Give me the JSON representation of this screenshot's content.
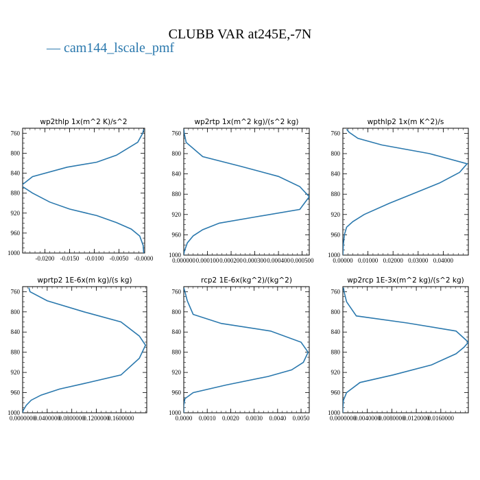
{
  "figure": {
    "title": "CLUBB VAR at245E,-7N",
    "legend": [
      {
        "label": "cam144_lscale_pmf",
        "color": "#2a78ad"
      }
    ]
  },
  "chart_data": [
    {
      "type": "line",
      "title": "wp2thlp  1x(m^2 K)/s^2",
      "xlim": [
        -0.0245,
        0.0002
      ],
      "ylim": [
        1000,
        750
      ],
      "xticks": [
        -0.02,
        -0.015,
        -0.01,
        -0.005,
        0
      ],
      "xtick_labels": [
        "-0.0200",
        "-0.0150",
        "-0.0100",
        "-0.0050",
        "-0.0000"
      ],
      "yticks": [
        760,
        800,
        840,
        880,
        920,
        960,
        1000
      ],
      "series": [
        {
          "x": [
            0,
            -0.0002,
            -0.0012,
            -0.0055,
            -0.0095,
            -0.0155,
            -0.0225,
            -0.0248,
            -0.0225,
            -0.019,
            -0.015,
            -0.0095,
            -0.0055,
            -0.0025,
            -0.0008,
            -0.0001,
            0
          ],
          "y": [
            752,
            760,
            778,
            804,
            818,
            828,
            847,
            865,
            880,
            898,
            912,
            925,
            939,
            952,
            966,
            985,
            1000
          ]
        }
      ]
    },
    {
      "type": "line",
      "title": "wp2rtp  1x(m^2 kg)/(s^2 kg)",
      "xlim": [
        0,
        0.00053
      ],
      "ylim": [
        1000,
        750
      ],
      "xticks": [
        0,
        0.0001,
        0.0002,
        0.0003,
        0.0004,
        0.0005
      ],
      "xtick_labels": [
        "0.000000",
        "0.000100",
        "0.000200",
        "0.000300",
        "0.000400",
        "0.000500"
      ],
      "yticks": [
        760,
        800,
        840,
        880,
        920,
        960,
        1000
      ],
      "series": [
        {
          "x": [
            5e-07,
            2e-06,
            1e-05,
            8e-05,
            0.00024,
            0.0004,
            0.00049,
            0.00053,
            0.00049,
            0.0003,
            0.00015,
            8e-05,
            4e-05,
            1.5e-05,
            2e-06,
            0
          ],
          "y": [
            752,
            760,
            778,
            806,
            825,
            845,
            865,
            885,
            910,
            925,
            937,
            950,
            962,
            976,
            993,
            1000
          ]
        }
      ]
    },
    {
      "type": "line",
      "title": "wpthlp2  1x(m K^2)/s",
      "xlim": [
        0,
        0.05
      ],
      "ylim": [
        1000,
        750
      ],
      "xticks": [
        0,
        0.01,
        0.02,
        0.03,
        0.04
      ],
      "xtick_labels": [
        "0.00000",
        "0.01000",
        "0.02000",
        "0.03000",
        "0.04000"
      ],
      "yticks": [
        760,
        800,
        840,
        880,
        920,
        960,
        1000
      ],
      "series": [
        {
          "x": [
            0.0015,
            0.0025,
            0.006,
            0.0155,
            0.0345,
            0.0495,
            0.0465,
            0.0385,
            0.0285,
            0.0185,
            0.0085,
            0.004,
            0.0015,
            0.0006,
            0.0002,
            0
          ],
          "y": [
            752,
            758,
            770,
            783,
            800,
            820,
            837,
            858,
            878,
            898,
            920,
            934,
            945,
            960,
            980,
            1000
          ]
        }
      ]
    },
    {
      "type": "line",
      "title": "wprtp2  1E-6x(m kg)/(s kg)",
      "xlim": [
        0,
        0.202
      ],
      "ylim": [
        1000,
        750
      ],
      "xticks": [
        0,
        0.04,
        0.08,
        0.12,
        0.16
      ],
      "xtick_labels": [
        "0.0000000",
        "0.0400000",
        "0.0800000",
        "0.1200000",
        "0.1600000"
      ],
      "yticks": [
        760,
        800,
        840,
        880,
        920,
        960,
        1000
      ],
      "series": [
        {
          "x": [
            0.01,
            0.012,
            0.04,
            0.1,
            0.16,
            0.19,
            0.2,
            0.19,
            0.16,
            0.1,
            0.06,
            0.03,
            0.014,
            0.006,
            0.001,
            0
          ],
          "y": [
            752,
            760,
            778,
            800,
            820,
            848,
            866,
            892,
            925,
            942,
            953,
            965,
            975,
            985,
            995,
            1000
          ]
        }
      ]
    },
    {
      "type": "line",
      "title": "rcp2  1E-6x(kg^2)/(kg^2)",
      "xlim": [
        0,
        0.00535
      ],
      "ylim": [
        1000,
        750
      ],
      "xticks": [
        0,
        0.001,
        0.002,
        0.003,
        0.004,
        0.005
      ],
      "xtick_labels": [
        "0.0000",
        "0.0010",
        "0.0020",
        "0.0030",
        "0.0040",
        "0.0050"
      ],
      "yticks": [
        760,
        800,
        840,
        880,
        920,
        960,
        1000
      ],
      "series": [
        {
          "x": [
            0,
            5e-05,
            0.00015,
            0.0004,
            0.0016,
            0.0037,
            0.005,
            0.0053,
            0.0051,
            0.0046,
            0.0036,
            0.0018,
            0.0004,
            5e-05,
            0,
            0
          ],
          "y": [
            752,
            760,
            778,
            805,
            823,
            838,
            860,
            880,
            900,
            915,
            928,
            945,
            960,
            972,
            985,
            1000
          ]
        }
      ]
    },
    {
      "type": "line",
      "title": "wp2rcp  1E-3x(m^2 kg)/(s^2 kg)",
      "xlim": [
        0,
        0.0205
      ],
      "ylim": [
        1000,
        750
      ],
      "xticks": [
        0,
        0.004,
        0.008,
        0.012,
        0.016
      ],
      "xtick_labels": [
        "0.0000000",
        "0.0040000",
        "0.0080000",
        "0.0120000",
        "0.0160000"
      ],
      "yticks": [
        760,
        800,
        840,
        880,
        920,
        960,
        1000
      ],
      "series": [
        {
          "x": [
            0.0001,
            0.0002,
            0.0006,
            0.0022,
            0.0105,
            0.0185,
            0.0205,
            0.0198,
            0.0185,
            0.0145,
            0.0082,
            0.0028,
            0.0006,
            0.0001,
            0,
            0
          ],
          "y": [
            752,
            760,
            780,
            808,
            822,
            838,
            860,
            870,
            883,
            905,
            925,
            940,
            960,
            975,
            990,
            1000
          ]
        }
      ]
    }
  ]
}
